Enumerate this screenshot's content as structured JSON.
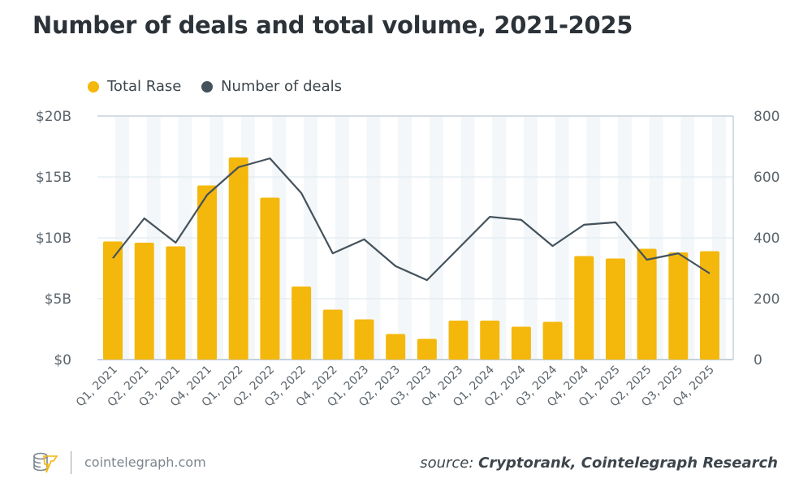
{
  "chart_data": {
    "type": "bar",
    "title": "Number of deals and total volume, 2021-2025",
    "categories": [
      "Q1, 2021",
      "Q2, 2021",
      "Q3, 2021",
      "Q4, 2021",
      "Q1, 2022",
      "Q2, 2022",
      "Q3, 2022",
      "Q4, 2022",
      "Q1, 2023",
      "Q2, 2023",
      "Q3, 2023",
      "Q4, 2023",
      "Q1, 2024",
      "Q2, 2024",
      "Q3, 2024",
      "Q4, 2024",
      "Q1, 2025",
      "Q2, 2025",
      "Q3, 2025",
      "Q4, 2025"
    ],
    "series": [
      {
        "name": "Total Rase",
        "type": "bar",
        "axis": "left",
        "unit": "$B",
        "color": "#f4b70c",
        "values": [
          9.7,
          9.6,
          9.3,
          14.3,
          16.6,
          13.3,
          6.0,
          4.1,
          3.3,
          2.1,
          1.7,
          3.2,
          3.2,
          2.7,
          3.1,
          8.5,
          8.3,
          9.1,
          8.8,
          8.9
        ]
      },
      {
        "name": "Number of deals",
        "type": "line",
        "axis": "right",
        "color": "#44525c",
        "values": [
          333,
          464,
          384,
          541,
          632,
          661,
          547,
          349,
          395,
          307,
          261,
          365,
          469,
          459,
          373,
          443,
          451,
          328,
          349,
          283
        ]
      }
    ],
    "left_axis": {
      "ylim": [
        0,
        20
      ],
      "ticks": [
        "$0",
        "$5B",
        "$10B",
        "$15B",
        "$20B"
      ]
    },
    "right_axis": {
      "ylim": [
        0,
        800
      ],
      "ticks": [
        "0",
        "200",
        "400",
        "600",
        "800"
      ]
    },
    "legend_placement": "top-left",
    "grid": true
  },
  "footer": {
    "site": "cointelegraph.com",
    "source_prefix": "source:",
    "source_text": "Cryptorank, Cointelegraph Research"
  }
}
